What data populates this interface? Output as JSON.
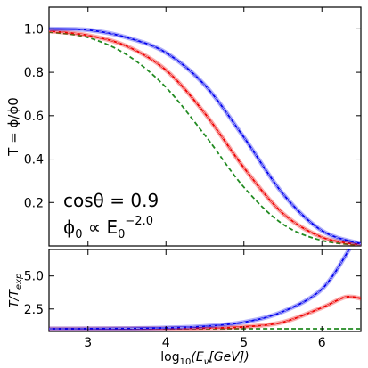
{
  "chart_data": [
    {
      "type": "line",
      "panel": "top",
      "ylabel": "T = ϕ/ϕ0",
      "xlim": [
        2.5,
        6.5
      ],
      "ylim": [
        0.0,
        1.1
      ],
      "yticks": [
        "0.2",
        "0.4",
        "0.6",
        "0.8",
        "1.0"
      ],
      "annotations": {
        "line1": "cosθ = 0.9",
        "line2_base": "ϕ",
        "line2_sub": "0",
        "line2_mid": " ∝ E",
        "line2_sub2": "0",
        "line2_sup": "−2.0"
      },
      "series": [
        {
          "color": "#0000ee",
          "style": "solid",
          "band": true,
          "x": [
            2.5,
            3.0,
            3.5,
            4.0,
            4.5,
            5.0,
            5.5,
            6.0,
            6.5
          ],
          "y": [
            1.0,
            0.995,
            0.96,
            0.89,
            0.74,
            0.5,
            0.24,
            0.07,
            0.01
          ]
        },
        {
          "color": "#ee0000",
          "style": "solid",
          "band": true,
          "x": [
            2.5,
            3.0,
            3.5,
            4.0,
            4.5,
            5.0,
            5.5,
            6.0,
            6.5
          ],
          "y": [
            0.99,
            0.97,
            0.92,
            0.81,
            0.61,
            0.36,
            0.15,
            0.04,
            0.005
          ]
        },
        {
          "color": "#228b22",
          "style": "dashed",
          "band": false,
          "x": [
            2.5,
            3.0,
            3.5,
            4.0,
            4.5,
            5.0,
            5.5,
            6.0,
            6.5
          ],
          "y": [
            0.985,
            0.96,
            0.88,
            0.73,
            0.51,
            0.27,
            0.1,
            0.025,
            0.003
          ]
        }
      ]
    },
    {
      "type": "line",
      "panel": "bottom",
      "ylabel": "T/T",
      "ylabel_sub": "exp",
      "xlabel": "log",
      "xlabel_sub": "10",
      "xlabel_rest": "(E",
      "xlabel_sub2": "ν",
      "xlabel_end": "[GeV])",
      "xlim": [
        2.5,
        6.5
      ],
      "ylim": [
        0.8,
        7.0
      ],
      "xticks": [
        "3",
        "4",
        "5",
        "6"
      ],
      "yticks": [
        "2.5",
        "5.0"
      ],
      "series": [
        {
          "color": "#0000ee",
          "style": "solid",
          "band": true,
          "x": [
            2.5,
            3.0,
            3.5,
            4.0,
            4.5,
            5.0,
            5.5,
            6.0,
            6.35
          ],
          "y": [
            1.0,
            1.01,
            1.03,
            1.08,
            1.2,
            1.5,
            2.3,
            4.0,
            7.0
          ]
        },
        {
          "color": "#ee0000",
          "style": "solid",
          "band": true,
          "x": [
            2.5,
            3.0,
            3.5,
            4.0,
            4.5,
            5.0,
            5.5,
            6.0,
            6.3,
            6.5
          ],
          "y": [
            1.0,
            1.0,
            1.01,
            1.02,
            1.05,
            1.15,
            1.5,
            2.6,
            3.4,
            3.3
          ]
        },
        {
          "color": "#228b22",
          "style": "dashed",
          "band": false,
          "x": [
            2.5,
            6.5
          ],
          "y": [
            1.0,
            1.0
          ]
        }
      ]
    }
  ]
}
